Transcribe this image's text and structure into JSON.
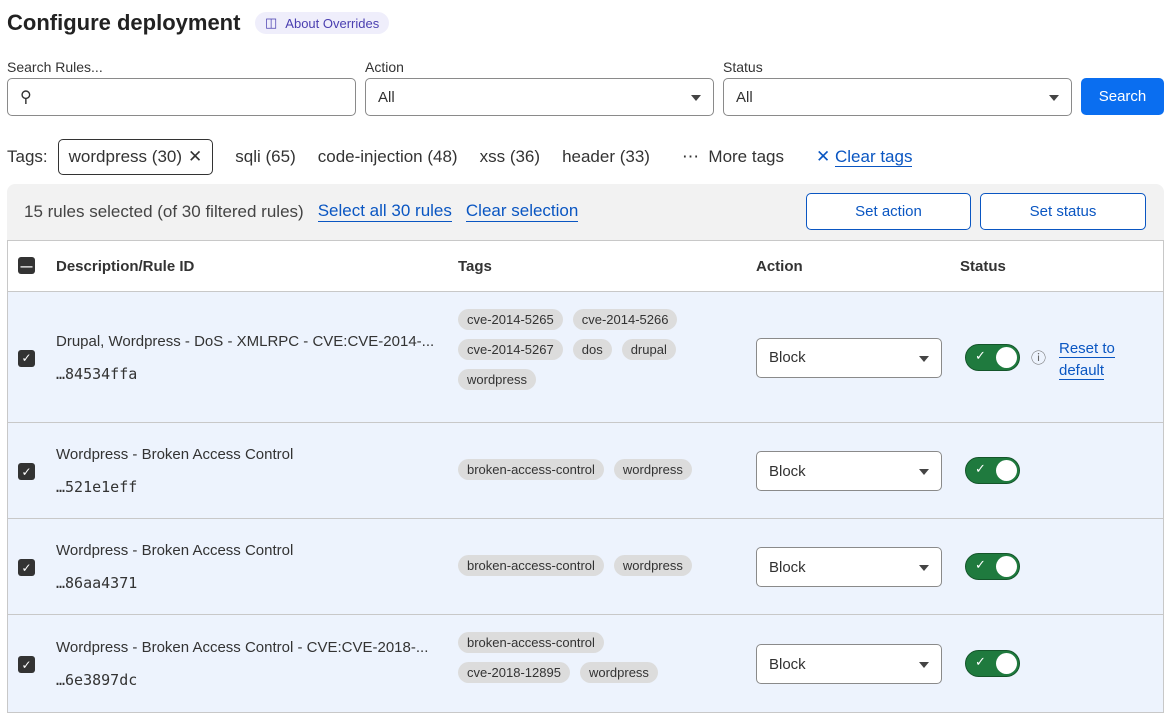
{
  "header": {
    "title": "Configure deployment",
    "about_label": "About Overrides"
  },
  "filters": {
    "search_label": "Search Rules...",
    "search_value": "",
    "action_label": "Action",
    "action_value": "All",
    "status_label": "Status",
    "status_value": "All",
    "search_button": "Search"
  },
  "tags": {
    "label": "Tags:",
    "active": "wordpress (30)",
    "items": [
      "sqli (65)",
      "code-injection (48)",
      "xss (36)",
      "header (33)"
    ],
    "more": "More tags",
    "clear": "Clear tags"
  },
  "selection": {
    "summary": "15 rules selected (of 30 filtered rules)",
    "select_all": "Select all 30 rules",
    "clear": "Clear selection",
    "set_action": "Set action",
    "set_status": "Set status"
  },
  "table": {
    "columns": [
      "Description/Rule ID",
      "Tags",
      "Action",
      "Status"
    ],
    "rows": [
      {
        "description": "Drupal, Wordpress - DoS - XMLRPC - CVE:CVE-2014-...",
        "id": "…84534ffa",
        "tags": [
          "cve-2014-5265",
          "cve-2014-5266",
          "cve-2014-5267",
          "dos",
          "drupal",
          "wordpress"
        ],
        "action": "Block",
        "enabled": true,
        "reset": "Reset to default"
      },
      {
        "description": "Wordpress - Broken Access Control",
        "id": "…521e1eff",
        "tags": [
          "broken-access-control",
          "wordpress"
        ],
        "action": "Block",
        "enabled": true
      },
      {
        "description": "Wordpress - Broken Access Control",
        "id": "…86aa4371",
        "tags": [
          "broken-access-control",
          "wordpress"
        ],
        "action": "Block",
        "enabled": true
      },
      {
        "description": "Wordpress - Broken Access Control - CVE:CVE-2018-...",
        "id": "…6e3897dc",
        "tags": [
          "broken-access-control",
          "cve-2018-12895",
          "wordpress"
        ],
        "action": "Block",
        "enabled": true
      }
    ]
  },
  "colors": {
    "primary": "#0a6ef0",
    "toggle_on": "#1f7a3e",
    "row_selected": "#edf3fd"
  }
}
